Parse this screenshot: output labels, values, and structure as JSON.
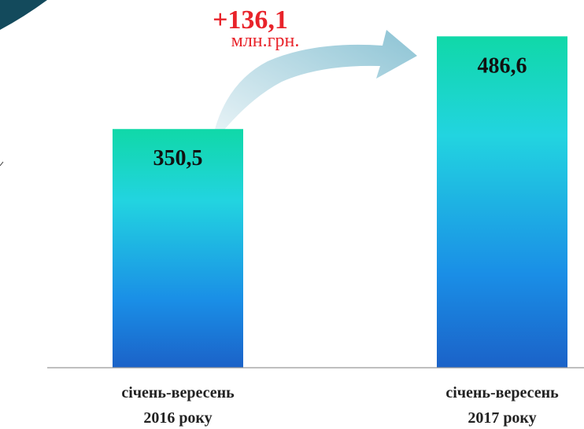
{
  "chart_data": {
    "type": "bar",
    "categories": [
      [
        "січень-вересень",
        "2016 року"
      ],
      [
        "січень-вересень",
        "2017 року"
      ]
    ],
    "values": [
      350.5,
      486.6
    ],
    "value_labels": [
      "350,5",
      "486,6"
    ],
    "ylim": [
      0,
      540
    ],
    "grid": false,
    "change": {
      "amount_label": "+136,1",
      "unit_label": "млн.грн."
    },
    "colors": {
      "bar_top": "#10d8a8",
      "bar_mid": "#22d4e0",
      "bar_low": "#1a8ee6",
      "bar_bottom": "#1b62c8",
      "arrow": "#8cc3d4",
      "change_text": "#e8232a",
      "axis": "#999999",
      "corner": "#134a5c",
      "value_text": "#111111"
    }
  }
}
